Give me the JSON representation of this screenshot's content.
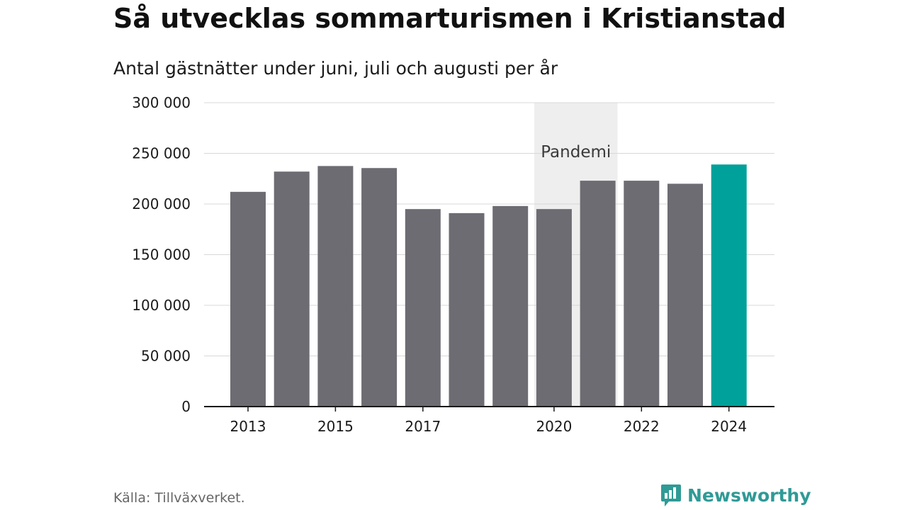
{
  "title": "Så utvecklas sommarturismen i Kristianstad",
  "subtitle": "Antal gästnätter under juni, juli och augusti per år",
  "source": "Källa: Tillväxverket.",
  "brand": {
    "name": "Newsworthy",
    "icon": "newsworthy-logo-icon"
  },
  "colors": {
    "bar": "#6d6c73",
    "highlight": "#00a19a",
    "grid": "#d8d8d8",
    "band": "#eeeeee",
    "axis": "#1a1a1a"
  },
  "chart_data": {
    "type": "bar",
    "title": "Så utvecklas sommarturismen i Kristianstad",
    "subtitle": "Antal gästnätter under juni, juli och augusti per år",
    "categories": [
      "2013",
      "2014",
      "2015",
      "2016",
      "2017",
      "2018",
      "2019",
      "2020",
      "2021",
      "2022",
      "2023",
      "2024"
    ],
    "values": [
      212000,
      232000,
      237500,
      235500,
      195000,
      191000,
      198000,
      195000,
      223000,
      223000,
      220000,
      239000
    ],
    "highlight": "2024",
    "ylim": [
      0,
      300000
    ],
    "yticks": [
      0,
      50000,
      100000,
      150000,
      200000,
      250000,
      300000
    ],
    "ytick_labels": [
      "0",
      "50 000",
      "100 000",
      "150 000",
      "200 000",
      "250 000",
      "300 000"
    ],
    "xtick_labels": [
      "2013",
      "2015",
      "2017",
      "2020",
      "2022",
      "2024"
    ],
    "annotation": {
      "text": "Pandemi",
      "from": "2020",
      "to": "2021"
    },
    "grid": true,
    "legend": "none"
  }
}
